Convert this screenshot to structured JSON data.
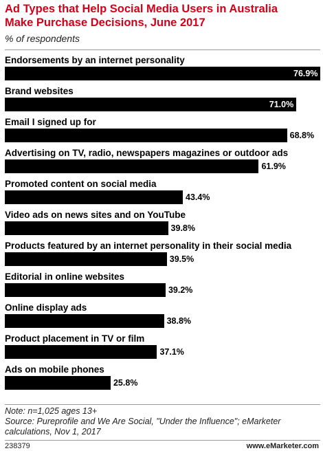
{
  "chart_data": {
    "type": "bar",
    "orientation": "horizontal",
    "title": "Ad Types that Help Social Media Users in Australia Make Purchase Decisions, June 2017",
    "subtitle": "% of respondents",
    "categories": [
      "Endorsements by an internet personality",
      "Brand websites",
      "Email I signed up for",
      "Advertising on TV, radio, newspapers magazines or outdoor ads",
      "Promoted content on social media",
      "Video ads on news sites and on YouTube",
      "Products featured by an internet personality in their social media",
      "Editorial in online websites",
      "Online display ads",
      "Product placement in TV or film",
      "Ads on mobile phones"
    ],
    "values": [
      76.9,
      71.0,
      68.8,
      61.9,
      43.4,
      39.8,
      39.5,
      39.2,
      38.8,
      37.1,
      25.8
    ],
    "value_labels": [
      "76.9%",
      "71.0%",
      "68.8%",
      "61.9%",
      "43.4%",
      "39.8%",
      "39.5%",
      "39.2%",
      "38.8%",
      "37.1%",
      "25.8%"
    ],
    "color": "#000000",
    "note": "Note: n=1,025 ages 13+",
    "source": "Source: Pureprofile and We Are Social, \"Under the Influence\"; eMarketer calculations, Nov 1, 2017",
    "chart_id": "238379",
    "site": "www.eMarketer.com"
  }
}
